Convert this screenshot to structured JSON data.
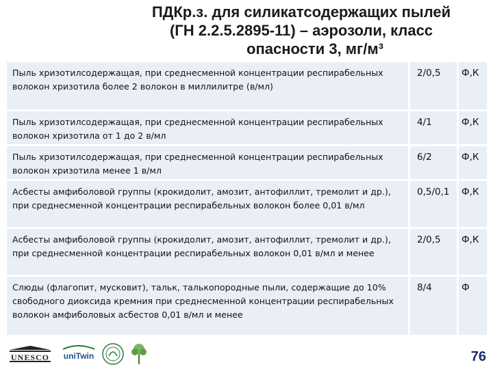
{
  "title": {
    "line1": "ПДКр.з. для силикатсодержащих пылей",
    "line2": "(ГН 2.2.5.2895-11) – аэрозоли, класс",
    "line3": "опасности 3, мг/м³"
  },
  "rows": [
    {
      "substance": "Пыль хризотилсодержащая, при среднесменной концентрации респирабельных волокон хризотила более 2 волокон в миллилитре (в/мл)",
      "value": "2/0,5",
      "code": "Ф,К"
    },
    {
      "substance": "Пыль хризотилсодержащая, при среднесменной концентрации респирабельных волокон хризотила от 1 до 2 в/мл",
      "value": "4/1",
      "code": "Ф,К"
    },
    {
      "substance": "Пыль хризотилсодержащая, при среднесменной концентрации респирабельных волокон хризотила менее 1 в/мл",
      "value": "6/2",
      "code": "Ф,К"
    },
    {
      "substance": "Асбесты амфиболовой группы (крокидолит, амозит, антофиллит, тремолит и др.), при среднесменной концентрации респирабельных волокон более 0,01 в/мл",
      "value": "0,5/0,1",
      "code": "Ф,К"
    },
    {
      "substance": "Асбесты амфиболовой группы (крокидолит, амозит, антофиллит, тремолит и др.), при среднесменной концентрации респирабельных волокон 0,01 в/мл и менее",
      "value": "2/0,5",
      "code": "Ф,К"
    },
    {
      "substance": "Слюды (флагопит, мусковит), тальк, талькопородные пыли, содержащие до 10% свободного диоксида кремния при среднесменной концентрации респирабельных волокон амфиболовых асбестов 0,01 в/мл и менее",
      "value": "8/4",
      "code": "Ф"
    }
  ],
  "logos": {
    "unesco": "UNESCO",
    "unitwin": "uniTwin"
  },
  "page_number": "76"
}
